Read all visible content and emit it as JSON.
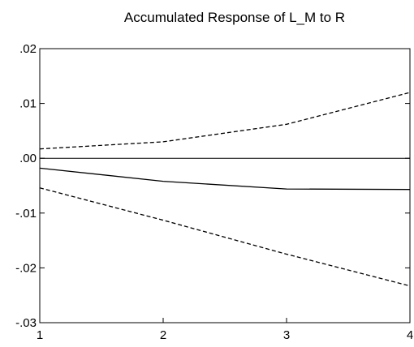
{
  "chart_data": {
    "type": "line",
    "title": "Accumulated Response of L_M to R",
    "xlabel": "",
    "ylabel": "",
    "x": [
      1,
      2,
      3,
      4
    ],
    "xlim": [
      1,
      4
    ],
    "ylim": [
      -0.03,
      0.02
    ],
    "x_ticks": [
      "1",
      "2",
      "3",
      "4"
    ],
    "y_ticks": [
      {
        "value": 0.02,
        "label": ".02"
      },
      {
        "value": 0.01,
        "label": ".01"
      },
      {
        "value": 0.0,
        "label": ".00"
      },
      {
        "value": -0.01,
        "label": "-.01"
      },
      {
        "value": -0.02,
        "label": "-.02"
      },
      {
        "value": -0.03,
        "label": "-.03"
      }
    ],
    "zero_line": true,
    "grid": false,
    "series": [
      {
        "style": "solid",
        "color": "#000000",
        "values": [
          -0.0018,
          -0.0042,
          -0.0056,
          -0.0057
        ]
      },
      {
        "style": "dashed",
        "color": "#000000",
        "values": [
          0.0017,
          0.003,
          0.0062,
          0.012
        ]
      },
      {
        "style": "dashed",
        "color": "#000000",
        "values": [
          -0.0054,
          -0.0113,
          -0.0175,
          -0.0233
        ]
      }
    ]
  }
}
